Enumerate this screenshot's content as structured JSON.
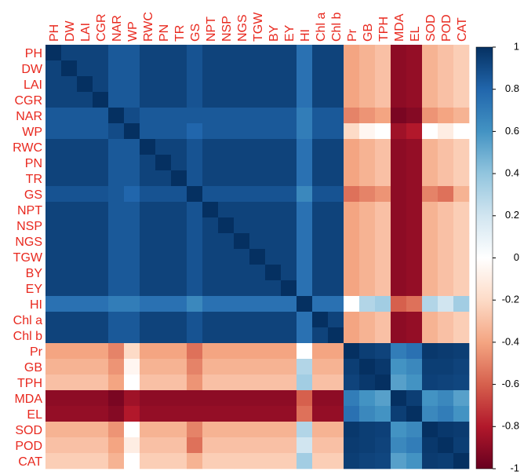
{
  "chart_data": {
    "type": "heatmap",
    "labels": [
      "PH",
      "DW",
      "LAI",
      "CGR",
      "NAR",
      "WP",
      "RWC",
      "PN",
      "TR",
      "GS",
      "NPT",
      "NSP",
      "NGS",
      "TGW",
      "BY",
      "EY",
      "HI",
      "Chl a",
      "Chl b",
      "Pr",
      "GB",
      "TPH",
      "MDA",
      "EL",
      "SOD",
      "POD",
      "CAT"
    ],
    "values": [
      [
        1,
        0.93,
        0.93,
        0.93,
        0.85,
        0.85,
        0.93,
        0.93,
        0.93,
        0.87,
        0.93,
        0.93,
        0.93,
        0.93,
        0.93,
        0.93,
        0.75,
        0.93,
        0.93,
        -0.4,
        -0.35,
        -0.3,
        -0.9,
        -0.88,
        -0.35,
        -0.3,
        -0.25
      ],
      [
        0.93,
        1,
        0.93,
        0.93,
        0.85,
        0.85,
        0.93,
        0.93,
        0.93,
        0.87,
        0.93,
        0.93,
        0.93,
        0.93,
        0.93,
        0.93,
        0.75,
        0.93,
        0.93,
        -0.4,
        -0.35,
        -0.3,
        -0.9,
        -0.88,
        -0.35,
        -0.3,
        -0.25
      ],
      [
        0.93,
        0.93,
        1,
        0.93,
        0.85,
        0.85,
        0.93,
        0.93,
        0.93,
        0.87,
        0.93,
        0.93,
        0.93,
        0.93,
        0.93,
        0.93,
        0.75,
        0.93,
        0.93,
        -0.4,
        -0.35,
        -0.3,
        -0.9,
        -0.88,
        -0.35,
        -0.3,
        -0.25
      ],
      [
        0.93,
        0.93,
        0.93,
        1,
        0.85,
        0.85,
        0.93,
        0.93,
        0.93,
        0.87,
        0.93,
        0.93,
        0.93,
        0.93,
        0.93,
        0.93,
        0.75,
        0.93,
        0.93,
        -0.4,
        -0.35,
        -0.3,
        -0.9,
        -0.88,
        -0.35,
        -0.3,
        -0.25
      ],
      [
        0.85,
        0.85,
        0.85,
        0.85,
        1,
        0.9,
        0.85,
        0.85,
        0.85,
        0.85,
        0.85,
        0.85,
        0.85,
        0.85,
        0.85,
        0.85,
        0.7,
        0.85,
        0.85,
        -0.5,
        -0.45,
        -0.4,
        -0.95,
        -0.92,
        -0.45,
        -0.4,
        -0.35
      ],
      [
        0.85,
        0.85,
        0.85,
        0.85,
        0.9,
        1,
        0.85,
        0.85,
        0.85,
        0.8,
        0.85,
        0.85,
        0.85,
        0.85,
        0.85,
        0.85,
        0.7,
        0.85,
        0.85,
        -0.2,
        -0.05,
        0,
        -0.85,
        -0.8,
        0,
        -0.1,
        0
      ],
      [
        0.93,
        0.93,
        0.93,
        0.93,
        0.85,
        0.85,
        1,
        0.93,
        0.93,
        0.87,
        0.93,
        0.93,
        0.93,
        0.93,
        0.93,
        0.93,
        0.75,
        0.93,
        0.93,
        -0.4,
        -0.35,
        -0.3,
        -0.9,
        -0.88,
        -0.35,
        -0.3,
        -0.25
      ],
      [
        0.93,
        0.93,
        0.93,
        0.93,
        0.85,
        0.85,
        0.93,
        1,
        0.93,
        0.87,
        0.93,
        0.93,
        0.93,
        0.93,
        0.93,
        0.93,
        0.75,
        0.93,
        0.93,
        -0.4,
        -0.35,
        -0.3,
        -0.9,
        -0.88,
        -0.35,
        -0.3,
        -0.25
      ],
      [
        0.93,
        0.93,
        0.93,
        0.93,
        0.85,
        0.85,
        0.93,
        0.93,
        1,
        0.87,
        0.93,
        0.93,
        0.93,
        0.93,
        0.93,
        0.93,
        0.75,
        0.93,
        0.93,
        -0.4,
        -0.35,
        -0.3,
        -0.9,
        -0.88,
        -0.35,
        -0.3,
        -0.25
      ],
      [
        0.87,
        0.87,
        0.87,
        0.87,
        0.85,
        0.8,
        0.87,
        0.87,
        0.87,
        1,
        0.87,
        0.87,
        0.87,
        0.87,
        0.87,
        0.87,
        0.65,
        0.87,
        0.87,
        -0.55,
        -0.5,
        -0.45,
        -0.9,
        -0.88,
        -0.5,
        -0.55,
        -0.35
      ],
      [
        0.93,
        0.93,
        0.93,
        0.93,
        0.85,
        0.85,
        0.93,
        0.93,
        0.93,
        0.87,
        1,
        0.93,
        0.93,
        0.93,
        0.93,
        0.93,
        0.75,
        0.93,
        0.93,
        -0.4,
        -0.35,
        -0.3,
        -0.9,
        -0.88,
        -0.35,
        -0.3,
        -0.25
      ],
      [
        0.93,
        0.93,
        0.93,
        0.93,
        0.85,
        0.85,
        0.93,
        0.93,
        0.93,
        0.87,
        0.93,
        1,
        0.93,
        0.93,
        0.93,
        0.93,
        0.75,
        0.93,
        0.93,
        -0.4,
        -0.35,
        -0.3,
        -0.9,
        -0.88,
        -0.35,
        -0.3,
        -0.25
      ],
      [
        0.93,
        0.93,
        0.93,
        0.93,
        0.85,
        0.85,
        0.93,
        0.93,
        0.93,
        0.87,
        0.93,
        0.93,
        1,
        0.93,
        0.93,
        0.93,
        0.75,
        0.93,
        0.93,
        -0.4,
        -0.35,
        -0.3,
        -0.9,
        -0.88,
        -0.35,
        -0.3,
        -0.25
      ],
      [
        0.93,
        0.93,
        0.93,
        0.93,
        0.85,
        0.85,
        0.93,
        0.93,
        0.93,
        0.87,
        0.93,
        0.93,
        0.93,
        1,
        0.93,
        0.93,
        0.75,
        0.93,
        0.93,
        -0.4,
        -0.35,
        -0.3,
        -0.9,
        -0.88,
        -0.35,
        -0.3,
        -0.25
      ],
      [
        0.93,
        0.93,
        0.93,
        0.93,
        0.85,
        0.85,
        0.93,
        0.93,
        0.93,
        0.87,
        0.93,
        0.93,
        0.93,
        0.93,
        1,
        0.93,
        0.75,
        0.93,
        0.93,
        -0.4,
        -0.35,
        -0.3,
        -0.9,
        -0.88,
        -0.35,
        -0.3,
        -0.25
      ],
      [
        0.93,
        0.93,
        0.93,
        0.93,
        0.85,
        0.85,
        0.93,
        0.93,
        0.93,
        0.87,
        0.93,
        0.93,
        0.93,
        0.93,
        0.93,
        1,
        0.75,
        0.93,
        0.93,
        -0.4,
        -0.35,
        -0.3,
        -0.9,
        -0.88,
        -0.35,
        -0.3,
        -0.25
      ],
      [
        0.75,
        0.75,
        0.75,
        0.75,
        0.7,
        0.7,
        0.75,
        0.75,
        0.75,
        0.65,
        0.75,
        0.75,
        0.75,
        0.75,
        0.75,
        0.75,
        1,
        0.75,
        0.75,
        0,
        0.3,
        0.35,
        -0.6,
        -0.55,
        0.3,
        0.2,
        0.35
      ],
      [
        0.93,
        0.93,
        0.93,
        0.93,
        0.85,
        0.85,
        0.93,
        0.93,
        0.93,
        0.87,
        0.93,
        0.93,
        0.93,
        0.93,
        0.93,
        0.93,
        0.75,
        1,
        0.93,
        -0.4,
        -0.35,
        -0.3,
        -0.9,
        -0.88,
        -0.35,
        -0.3,
        -0.25
      ],
      [
        0.93,
        0.93,
        0.93,
        0.93,
        0.85,
        0.85,
        0.93,
        0.93,
        0.93,
        0.87,
        0.93,
        0.93,
        0.93,
        0.93,
        0.93,
        0.93,
        0.75,
        0.93,
        1,
        -0.4,
        -0.35,
        -0.3,
        -0.9,
        -0.88,
        -0.35,
        -0.3,
        -0.25
      ],
      [
        -0.4,
        -0.4,
        -0.4,
        -0.4,
        -0.5,
        -0.2,
        -0.4,
        -0.4,
        -0.4,
        -0.55,
        -0.4,
        -0.4,
        -0.4,
        -0.4,
        -0.4,
        -0.4,
        0,
        -0.4,
        -0.4,
        1,
        0.95,
        0.93,
        0.7,
        0.75,
        0.97,
        0.96,
        0.95
      ],
      [
        -0.35,
        -0.35,
        -0.35,
        -0.35,
        -0.45,
        -0.05,
        -0.35,
        -0.35,
        -0.35,
        -0.5,
        -0.35,
        -0.35,
        -0.35,
        -0.35,
        -0.35,
        -0.35,
        0.3,
        -0.35,
        -0.35,
        0.95,
        1,
        0.97,
        0.6,
        0.65,
        0.95,
        0.95,
        0.93
      ],
      [
        -0.3,
        -0.3,
        -0.3,
        -0.3,
        -0.4,
        0,
        -0.3,
        -0.3,
        -0.3,
        -0.45,
        -0.3,
        -0.3,
        -0.3,
        -0.3,
        -0.3,
        -0.3,
        0.35,
        -0.3,
        -0.3,
        0.93,
        0.97,
        1,
        0.55,
        0.6,
        0.94,
        0.93,
        0.92
      ],
      [
        -0.9,
        -0.9,
        -0.9,
        -0.9,
        -0.95,
        -0.85,
        -0.9,
        -0.9,
        -0.9,
        -0.9,
        -0.9,
        -0.9,
        -0.9,
        -0.9,
        -0.9,
        -0.9,
        -0.6,
        -0.9,
        -0.9,
        0.7,
        0.6,
        0.55,
        1,
        0.95,
        0.6,
        0.65,
        0.55
      ],
      [
        -0.88,
        -0.88,
        -0.88,
        -0.88,
        -0.92,
        -0.8,
        -0.88,
        -0.88,
        -0.88,
        -0.88,
        -0.88,
        -0.88,
        -0.88,
        -0.88,
        -0.88,
        -0.88,
        -0.55,
        -0.88,
        -0.88,
        0.75,
        0.65,
        0.6,
        0.95,
        1,
        0.65,
        0.7,
        0.6
      ],
      [
        -0.35,
        -0.35,
        -0.35,
        -0.35,
        -0.45,
        0,
        -0.35,
        -0.35,
        -0.35,
        -0.5,
        -0.35,
        -0.35,
        -0.35,
        -0.35,
        -0.35,
        -0.35,
        0.3,
        -0.35,
        -0.35,
        0.97,
        0.95,
        0.94,
        0.6,
        0.65,
        1,
        0.97,
        0.96
      ],
      [
        -0.3,
        -0.3,
        -0.3,
        -0.3,
        -0.4,
        -0.1,
        -0.3,
        -0.3,
        -0.3,
        -0.55,
        -0.3,
        -0.3,
        -0.3,
        -0.3,
        -0.3,
        -0.3,
        0.2,
        -0.3,
        -0.3,
        0.96,
        0.95,
        0.93,
        0.65,
        0.7,
        0.97,
        1,
        0.95
      ],
      [
        -0.25,
        -0.25,
        -0.25,
        -0.25,
        -0.35,
        0,
        -0.25,
        -0.25,
        -0.25,
        -0.35,
        -0.25,
        -0.25,
        -0.25,
        -0.25,
        -0.25,
        -0.25,
        0.35,
        -0.25,
        -0.25,
        0.95,
        0.93,
        0.92,
        0.55,
        0.6,
        0.96,
        0.95,
        1
      ]
    ],
    "colors": [
      "#67001F",
      "#B2182B",
      "#D6604D",
      "#F4A582",
      "#FDDBC7",
      "#FFFFFF",
      "#D1E5F0",
      "#92C5DE",
      "#4393C3",
      "#2166AC",
      "#053061"
    ],
    "ylim": [
      -1,
      1
    ],
    "yticks": [
      1,
      0.8,
      0.6,
      0.4,
      0.2,
      0,
      -0.2,
      -0.4,
      -0.6,
      -0.8,
      -1
    ]
  }
}
